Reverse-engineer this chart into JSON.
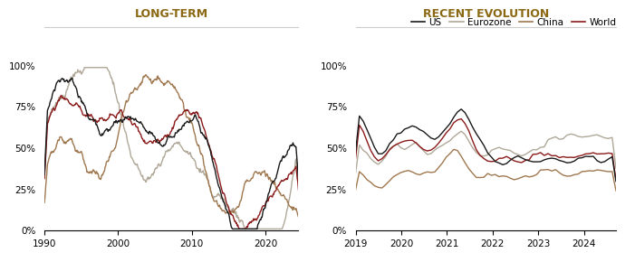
{
  "title_left": "LONG-TERM",
  "title_right": "RECENT EVOLUTION",
  "colors": {
    "US": "#1a1a1a",
    "Eurozone": "#b0a898",
    "China": "#a07850",
    "World": "#8b1a1a"
  },
  "legend_labels": [
    "US",
    "Eurozone",
    "China",
    "World"
  ],
  "title_color": "#8b6914",
  "background_color": "#ffffff"
}
